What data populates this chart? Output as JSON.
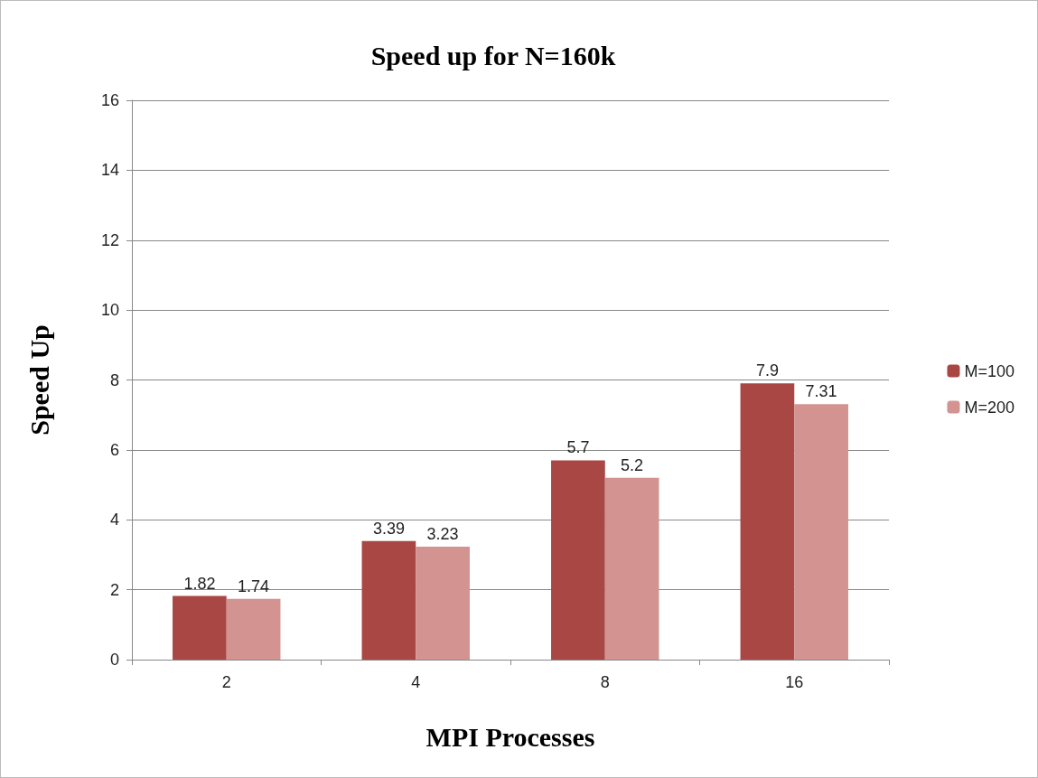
{
  "chart_data": {
    "type": "bar",
    "title": "Speed up for N=160k",
    "xlabel": "MPI Processes",
    "ylabel": "Speed Up",
    "categories": [
      "2",
      "4",
      "8",
      "16"
    ],
    "series": [
      {
        "name": "M=100",
        "color": "#a94744",
        "values": [
          1.82,
          3.39,
          5.7,
          7.9
        ]
      },
      {
        "name": "M=200",
        "color": "#d39391",
        "values": [
          1.74,
          3.23,
          5.2,
          7.31
        ]
      }
    ],
    "ylim": [
      0,
      16
    ],
    "yticks": [
      0,
      2,
      4,
      6,
      8,
      10,
      12,
      14,
      16
    ],
    "grid": "y",
    "legend": "right",
    "data_labels": true
  }
}
